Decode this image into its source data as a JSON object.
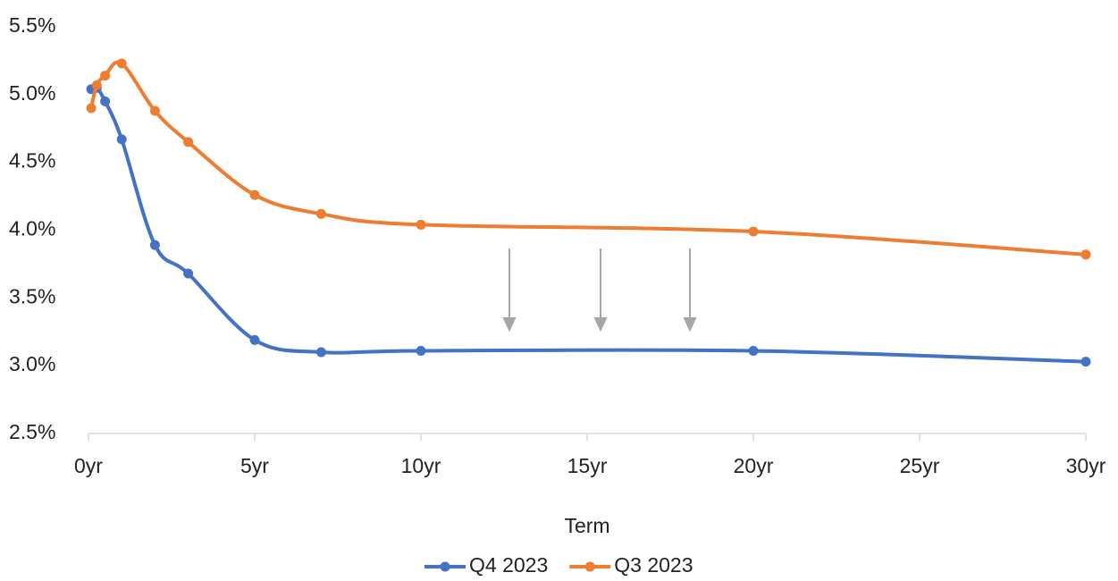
{
  "chart_data": {
    "type": "line",
    "x_label": "Term",
    "x": [
      0.083,
      0.25,
      0.5,
      1,
      2,
      3,
      5,
      7,
      10,
      20,
      30
    ],
    "series": [
      {
        "name": "Q4 2023",
        "color": "#4472c4",
        "values": [
          5.04,
          5.05,
          4.95,
          4.67,
          3.89,
          3.68,
          3.19,
          3.1,
          3.11,
          3.11,
          3.03
        ]
      },
      {
        "name": "Q3 2023",
        "color": "#ed7d31",
        "values": [
          4.9,
          5.07,
          5.14,
          5.23,
          4.88,
          4.65,
          4.26,
          4.12,
          4.04,
          3.99,
          3.82
        ]
      }
    ],
    "xlim": [
      0,
      30
    ],
    "xticks": [
      {
        "value": 0,
        "label": "0yr"
      },
      {
        "value": 5,
        "label": "5yr"
      },
      {
        "value": 10,
        "label": "10yr"
      },
      {
        "value": 15,
        "label": "15yr"
      },
      {
        "value": 20,
        "label": "20yr"
      },
      {
        "value": 25,
        "label": "25yr"
      },
      {
        "value": 30,
        "label": "30yr"
      }
    ],
    "ylim": [
      2.5,
      5.5
    ],
    "yticks": [
      {
        "value": 2.5,
        "label": "2.5%"
      },
      {
        "value": 3,
        "label": "3.0%"
      },
      {
        "value": 3.5,
        "label": "3.5%"
      },
      {
        "value": 4,
        "label": "4.0%"
      },
      {
        "value": 4.5,
        "label": "4.5%"
      },
      {
        "value": 5,
        "label": "5.0%"
      },
      {
        "value": 5.5,
        "label": "5.5%"
      }
    ],
    "grid": false,
    "legend": "bottom"
  }
}
